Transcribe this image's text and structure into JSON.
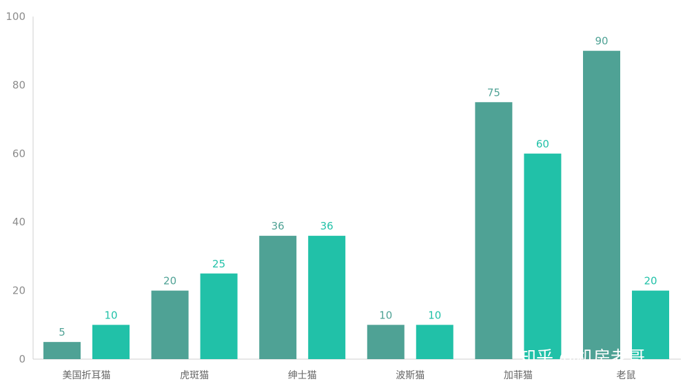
{
  "chart_data": {
    "type": "bar",
    "categories": [
      "美国折耳猫",
      "虎斑猫",
      "绅士猫",
      "波斯猫",
      "加菲猫",
      "老鼠"
    ],
    "series": [
      {
        "values": [
          5,
          20,
          36,
          10,
          75,
          90
        ],
        "color": "#4fa295"
      },
      {
        "values": [
          10,
          25,
          36,
          10,
          60,
          20
        ],
        "color": "#21c1a8"
      }
    ],
    "yticks": [
      "0",
      "20",
      "40",
      "60",
      "80",
      "100"
    ],
    "ylim": [
      0,
      100
    ],
    "grid": false,
    "xlabel": "",
    "ylabel": "",
    "title": ""
  },
  "watermark": "知乎 @机房老哥"
}
